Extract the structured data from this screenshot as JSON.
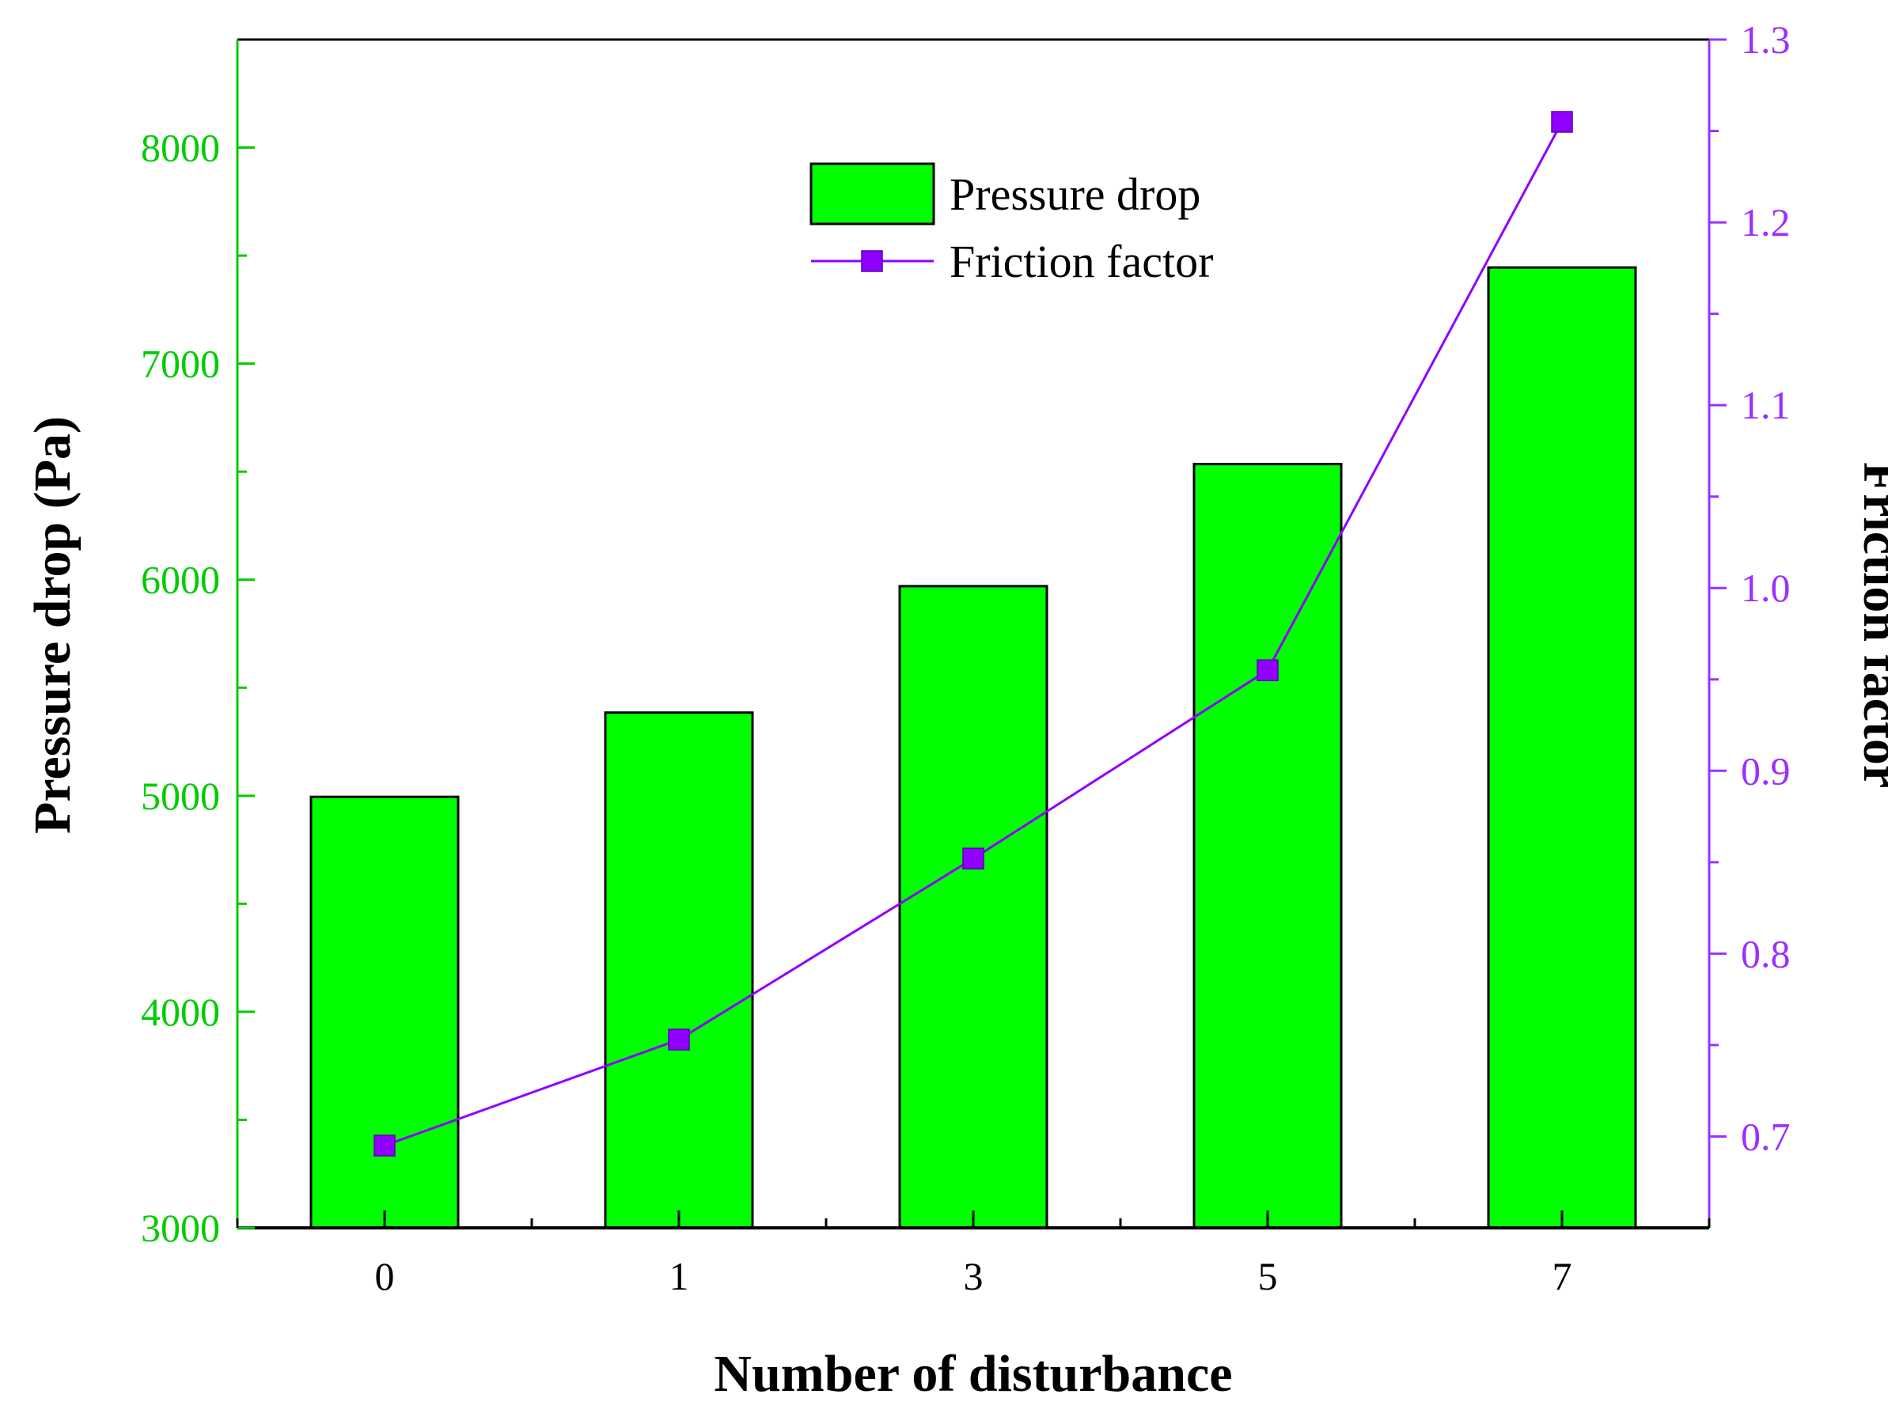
{
  "chart_data": {
    "type": "bar+line",
    "categories": [
      "0",
      "1",
      "3",
      "5",
      "7"
    ],
    "xlabel": "Number of disturbance",
    "series": [
      {
        "name": "Pressure drop",
        "kind": "bar",
        "axis": "left",
        "color": "#00ff00",
        "values": [
          4995,
          5385,
          5970,
          6535,
          7445
        ]
      },
      {
        "name": "Friction factor",
        "kind": "line",
        "marker": "square",
        "axis": "right",
        "color": "#8f00ff",
        "values": [
          0.695,
          0.753,
          0.852,
          0.955,
          1.255
        ]
      }
    ],
    "y_left": {
      "label": "Pressure drop (Pa)",
      "range": [
        3000,
        8500
      ],
      "ticks": [
        3000,
        4000,
        5000,
        6000,
        7000,
        8000
      ],
      "tick_labels": [
        "3000",
        "4000",
        "5000",
        "6000",
        "7000",
        "8000"
      ],
      "color": "#00cc00"
    },
    "y_right": {
      "label": "Friction factor",
      "range": [
        0.65,
        1.3
      ],
      "ticks": [
        0.7,
        0.8,
        0.9,
        1.0,
        1.1,
        1.2,
        1.3
      ],
      "tick_labels": [
        "0.7",
        "0.8",
        "0.9",
        "1.0",
        "1.1",
        "1.2",
        "1.3"
      ],
      "color": "#9b30ff"
    },
    "legend": {
      "placement": "top-center",
      "entries": [
        "Pressure drop",
        "Friction factor"
      ]
    }
  }
}
